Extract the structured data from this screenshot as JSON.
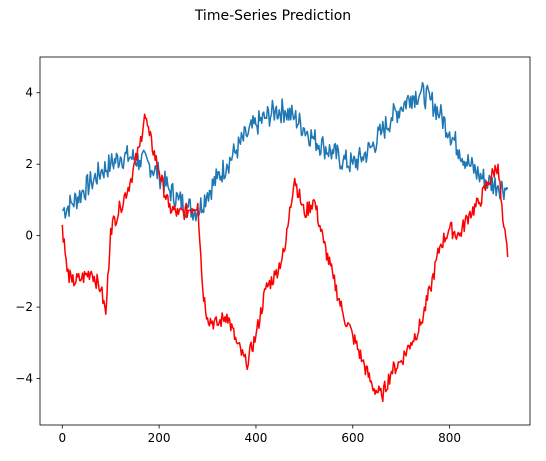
{
  "chart_data": {
    "type": "line",
    "title": "Time-Series Prediction",
    "xlabel": "",
    "ylabel": "",
    "xlim": [
      -46,
      966
    ],
    "ylim": [
      -5.3,
      5.0
    ],
    "xticks": [
      0,
      200,
      400,
      600,
      800
    ],
    "yticks": [
      -4,
      -2,
      0,
      2,
      4
    ],
    "ytick_labels": [
      "−4",
      "−2",
      "0",
      "2",
      "4"
    ],
    "grid": false,
    "legend": "none",
    "series": [
      {
        "color": "#1f77b4",
        "x": [
          0,
          20,
          40,
          60,
          80,
          100,
          120,
          140,
          160,
          180,
          200,
          220,
          240,
          260,
          280,
          300,
          320,
          340,
          360,
          380,
          400,
          420,
          440,
          460,
          480,
          500,
          520,
          540,
          560,
          580,
          600,
          620,
          640,
          660,
          680,
          700,
          720,
          740,
          760,
          780,
          800,
          820,
          840,
          860,
          880,
          900,
          920
        ],
        "values": [
          0.7,
          0.9,
          1.2,
          1.5,
          1.8,
          2.0,
          2.2,
          2.2,
          2.1,
          2.0,
          1.7,
          1.3,
          1.0,
          0.8,
          0.7,
          1.2,
          1.6,
          2.0,
          2.4,
          2.8,
          3.1,
          3.3,
          3.5,
          3.5,
          3.3,
          3.0,
          2.7,
          2.5,
          2.3,
          2.1,
          2.0,
          2.2,
          2.5,
          2.9,
          3.3,
          3.6,
          3.9,
          4.0,
          3.8,
          3.4,
          2.9,
          2.4,
          2.0,
          1.7,
          1.5,
          1.4,
          1.3
        ]
      },
      {
        "color": "#ff0000",
        "x": [
          0,
          10,
          20,
          40,
          60,
          80,
          90,
          100,
          120,
          140,
          160,
          170,
          180,
          200,
          220,
          240,
          260,
          280,
          290,
          300,
          320,
          340,
          360,
          380,
          400,
          420,
          440,
          460,
          470,
          480,
          500,
          520,
          540,
          560,
          580,
          600,
          620,
          640,
          660,
          680,
          700,
          720,
          740,
          760,
          780,
          800,
          820,
          840,
          860,
          880,
          900,
          910,
          920
        ],
        "values": [
          0.3,
          -1.0,
          -1.3,
          -1.2,
          -1.0,
          -1.5,
          -2.2,
          0.2,
          0.8,
          1.5,
          2.5,
          3.4,
          2.8,
          1.8,
          0.8,
          0.6,
          0.7,
          0.9,
          -1.5,
          -2.3,
          -2.5,
          -2.2,
          -3.0,
          -3.6,
          -2.8,
          -1.5,
          -1.1,
          -0.4,
          0.8,
          1.6,
          0.6,
          1.0,
          -0.2,
          -1.2,
          -2.2,
          -2.8,
          -3.5,
          -4.2,
          -4.5,
          -3.8,
          -3.5,
          -3.0,
          -2.5,
          -1.5,
          -0.3,
          0.2,
          0.0,
          0.6,
          0.9,
          1.5,
          2.0,
          0.4,
          -0.6
        ]
      }
    ]
  }
}
